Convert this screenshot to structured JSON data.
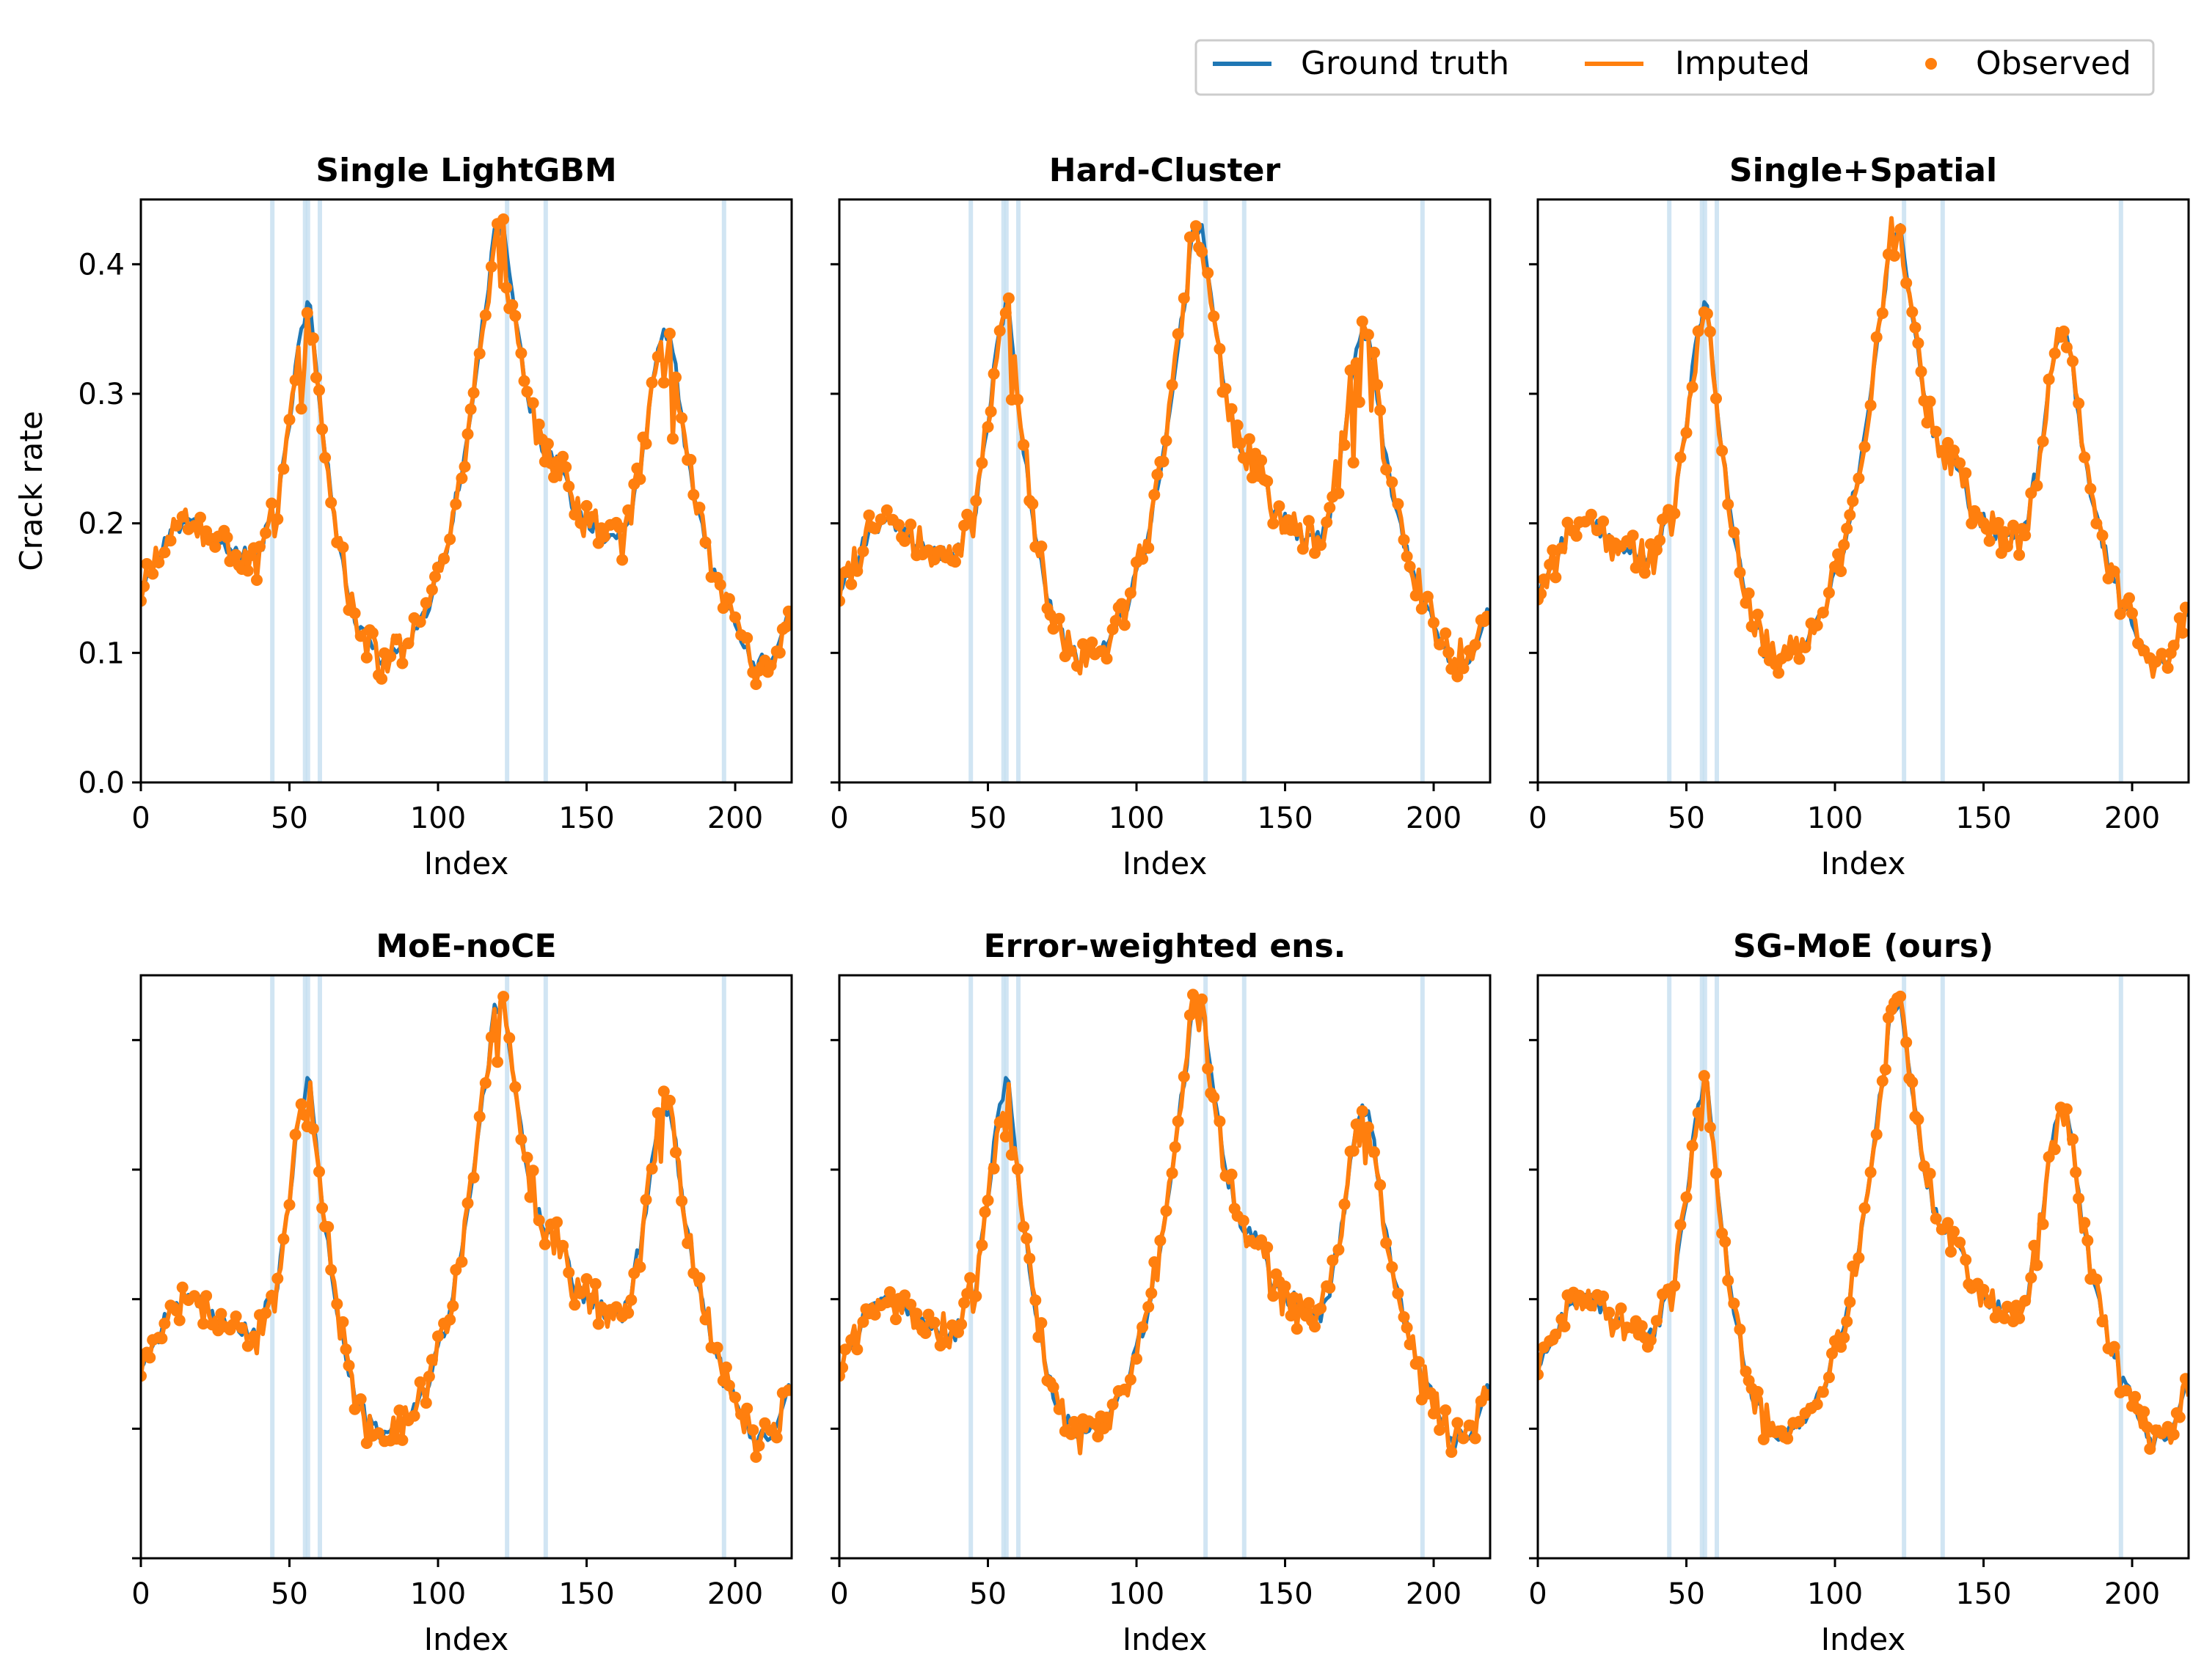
{
  "chart_data": {
    "type": "line",
    "legend": {
      "position": "top-right",
      "entries": [
        {
          "label": "Ground truth",
          "color": "#1f77b4",
          "style": "line"
        },
        {
          "label": "Imputed",
          "color": "#ff7f0e",
          "style": "line"
        },
        {
          "label": "Observed",
          "color": "#ff7f0e",
          "style": "marker"
        }
      ]
    },
    "xlabel": "Index",
    "ylabel": "Crack rate",
    "xlim": [
      0,
      219
    ],
    "ylim": [
      0,
      0.45
    ],
    "xticks": [
      0,
      50,
      100,
      150,
      200
    ],
    "yticks": [
      0.0,
      0.1,
      0.2,
      0.3,
      0.4
    ],
    "ytick_labels": [
      "0.0",
      "0.1",
      "0.2",
      "0.3",
      "0.4"
    ],
    "missing_indices": [
      44,
      55,
      56,
      60,
      123,
      136,
      196
    ],
    "ground_truth_anchors": [
      [
        0,
        0.15
      ],
      [
        5,
        0.17
      ],
      [
        12,
        0.2
      ],
      [
        20,
        0.195
      ],
      [
        30,
        0.18
      ],
      [
        38,
        0.17
      ],
      [
        42,
        0.19
      ],
      [
        46,
        0.21
      ],
      [
        50,
        0.28
      ],
      [
        54,
        0.35
      ],
      [
        57,
        0.37
      ],
      [
        60,
        0.3
      ],
      [
        64,
        0.22
      ],
      [
        70,
        0.14
      ],
      [
        76,
        0.105
      ],
      [
        82,
        0.092
      ],
      [
        88,
        0.105
      ],
      [
        96,
        0.13
      ],
      [
        104,
        0.19
      ],
      [
        110,
        0.27
      ],
      [
        115,
        0.35
      ],
      [
        119,
        0.42
      ],
      [
        122,
        0.43
      ],
      [
        126,
        0.36
      ],
      [
        130,
        0.3
      ],
      [
        134,
        0.265
      ],
      [
        140,
        0.25
      ],
      [
        146,
        0.21
      ],
      [
        152,
        0.2
      ],
      [
        158,
        0.185
      ],
      [
        163,
        0.19
      ],
      [
        168,
        0.24
      ],
      [
        173,
        0.32
      ],
      [
        176,
        0.355
      ],
      [
        180,
        0.32
      ],
      [
        184,
        0.25
      ],
      [
        190,
        0.185
      ],
      [
        196,
        0.14
      ],
      [
        202,
        0.11
      ],
      [
        207,
        0.088
      ],
      [
        212,
        0.1
      ],
      [
        216,
        0.12
      ],
      [
        219,
        0.135
      ]
    ],
    "panels": [
      {
        "title": "Single LightGBM",
        "show_yticklabels": true,
        "show_ylabel": true,
        "noise": 0.012,
        "peak_dips": 0.06,
        "seed": 3
      },
      {
        "title": "Hard-Cluster",
        "show_yticklabels": false,
        "show_ylabel": false,
        "noise": 0.012,
        "peak_dips": 0.07,
        "seed": 7
      },
      {
        "title": "Single+Spatial",
        "show_yticklabels": false,
        "show_ylabel": false,
        "noise": 0.01,
        "peak_dips": 0.02,
        "seed": 11
      },
      {
        "title": "MoE-noCE",
        "show_yticklabels": false,
        "show_ylabel": false,
        "noise": 0.011,
        "peak_dips": 0.03,
        "seed": 17
      },
      {
        "title": "Error-weighted ens.",
        "show_yticklabels": false,
        "show_ylabel": false,
        "noise": 0.011,
        "peak_dips": 0.04,
        "seed": 23
      },
      {
        "title": "SG-MoE (ours)",
        "show_yticklabels": false,
        "show_ylabel": false,
        "noise": 0.009,
        "peak_dips": 0.015,
        "seed": 29
      }
    ]
  }
}
